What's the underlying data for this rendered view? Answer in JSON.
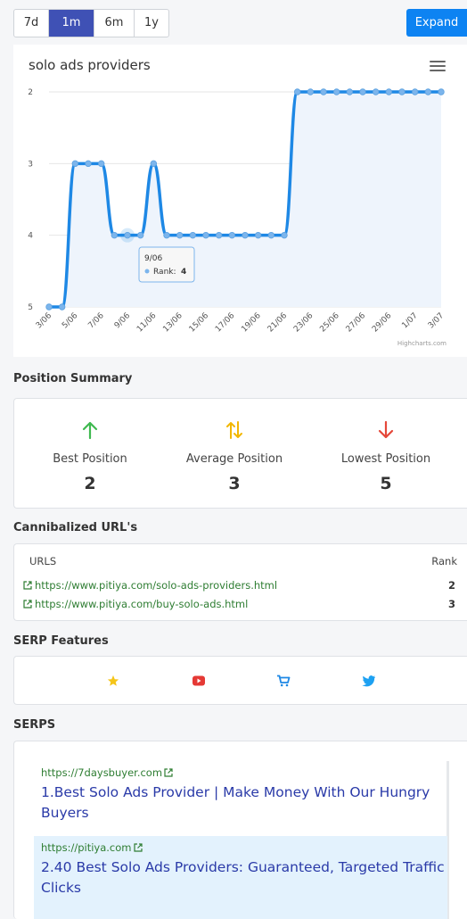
{
  "toolbar": {
    "ranges": [
      "7d",
      "1m",
      "6m",
      "1y"
    ],
    "active_range": "1m",
    "expand_label": "Expand"
  },
  "chart": {
    "title": "solo ads providers",
    "credit": "Highcharts.com",
    "tooltip": {
      "date": "9/06",
      "label": "Rank:",
      "value": "4"
    }
  },
  "chart_data": {
    "type": "line",
    "title": "solo ads providers",
    "xlabel": "",
    "ylabel": "",
    "y_reversed": true,
    "ylim": [
      2,
      5
    ],
    "yticks": [
      2,
      3,
      4,
      5
    ],
    "x_tick_labels": [
      "3/06",
      "5/06",
      "7/06",
      "9/06",
      "11/06",
      "13/06",
      "15/06",
      "17/06",
      "19/06",
      "21/06",
      "23/06",
      "25/06",
      "27/06",
      "29/06",
      "1/07",
      "3/07"
    ],
    "x": [
      "3/06",
      "4/06",
      "5/06",
      "6/06",
      "7/06",
      "8/06",
      "9/06",
      "10/06",
      "11/06",
      "12/06",
      "13/06",
      "14/06",
      "15/06",
      "16/06",
      "17/06",
      "18/06",
      "19/06",
      "20/06",
      "21/06",
      "22/06",
      "23/06",
      "24/06",
      "25/06",
      "26/06",
      "27/06",
      "28/06",
      "29/06",
      "30/06",
      "1/07",
      "2/07",
      "3/07"
    ],
    "series": [
      {
        "values": [
          5,
          5,
          3,
          3,
          3,
          4,
          4,
          4,
          3,
          4,
          4,
          4,
          4,
          4,
          4,
          4,
          4,
          4,
          4,
          2,
          2,
          2,
          2,
          2,
          2,
          2,
          2,
          2,
          2,
          2,
          2
        ]
      }
    ],
    "grid": true,
    "area_fill": true
  },
  "position_summary": {
    "title": "Position Summary",
    "items": [
      {
        "label": "Best Position",
        "value": "2",
        "icon": "arrow-up-icon",
        "color": "#3fb950"
      },
      {
        "label": "Average Position",
        "value": "3",
        "icon": "arrows-up-down-icon",
        "color": "#f2b705"
      },
      {
        "label": "Lowest Position",
        "value": "5",
        "icon": "arrow-down-icon",
        "color": "#e5483a"
      }
    ]
  },
  "cannibalized": {
    "title": "Cannibalized URL's",
    "col_urls": "URLS",
    "col_rank": "Rank",
    "rows": [
      {
        "url": "https://www.pitiya.com/solo-ads-providers.html",
        "rank": "2"
      },
      {
        "url": "https://www.pitiya.com/buy-solo-ads.html",
        "rank": "3"
      }
    ]
  },
  "serp_features": {
    "title": "SERP Features",
    "icons": [
      "star-icon",
      "youtube-icon",
      "cart-icon",
      "twitter-icon"
    ],
    "colors": {
      "star": "#f5c518",
      "youtube": "#e53935",
      "cart": "#1e88e5",
      "twitter": "#1da1f2"
    }
  },
  "serps": {
    "title": "SERPS",
    "items": [
      {
        "domain": "https://7daysbuyer.com",
        "title": "1.Best Solo Ads Provider | Make Money With Our Hungry Buyers",
        "highlight": false
      },
      {
        "domain": "https://pitiya.com",
        "title": "2.40 Best Solo Ads Providers: Guaranteed, Targeted Traffic Clicks",
        "highlight": true
      }
    ]
  },
  "colors": {
    "accent": "#3f51b5",
    "primary": "#0d83f2",
    "line": "#1e88e5",
    "highlight_bg": "#e3f2fd"
  }
}
